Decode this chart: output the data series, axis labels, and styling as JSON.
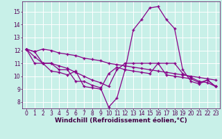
{
  "xlabel": "Windchill (Refroidissement éolien,°C)",
  "background_color": "#c8f0e8",
  "line_color": "#880088",
  "grid_color": "#ffffff",
  "xlim": [
    -0.5,
    23.5
  ],
  "ylim": [
    7.5,
    15.8
  ],
  "yticks": [
    8,
    9,
    10,
    11,
    12,
    13,
    14,
    15
  ],
  "xticks": [
    0,
    1,
    2,
    3,
    4,
    5,
    6,
    7,
    8,
    9,
    10,
    11,
    12,
    13,
    14,
    15,
    16,
    17,
    18,
    19,
    20,
    21,
    22,
    23
  ],
  "series": [
    [
      12.1,
      11.9,
      11.0,
      11.0,
      10.5,
      10.5,
      9.6,
      9.6,
      9.3,
      9.1,
      7.6,
      8.3,
      10.5,
      13.6,
      14.4,
      15.3,
      15.4,
      14.4,
      13.7,
      10.5,
      9.6,
      9.4,
      9.7,
      9.2
    ],
    [
      12.1,
      11.0,
      11.0,
      10.4,
      10.3,
      10.1,
      10.4,
      9.2,
      9.1,
      9.0,
      10.2,
      10.7,
      10.5,
      10.4,
      10.3,
      10.2,
      11.0,
      10.1,
      10.0,
      9.9,
      9.8,
      9.5,
      9.7,
      9.2
    ],
    [
      12.1,
      11.5,
      11.0,
      11.0,
      10.8,
      10.6,
      10.3,
      10.0,
      9.7,
      9.5,
      9.2,
      10.5,
      11.0,
      11.0,
      11.0,
      11.0,
      11.0,
      11.0,
      11.0,
      10.2,
      9.9,
      9.6,
      9.5,
      9.2
    ],
    [
      12.1,
      11.9,
      12.1,
      12.0,
      11.8,
      11.7,
      11.6,
      11.4,
      11.3,
      11.2,
      11.0,
      10.9,
      10.8,
      10.7,
      10.6,
      10.5,
      10.4,
      10.3,
      10.2,
      10.1,
      10.0,
      9.9,
      9.8,
      9.7
    ]
  ],
  "tick_fontsize": 5.5,
  "xlabel_fontsize": 6.5
}
